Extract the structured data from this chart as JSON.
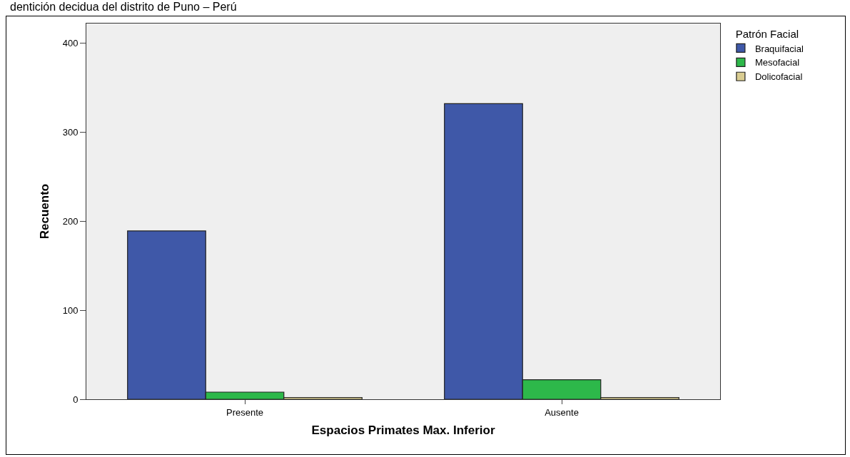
{
  "chart_data": {
    "type": "bar",
    "title": "dentición decidua del distrito de Puno – Perú",
    "xlabel": "Espacios Primates Max. Inferior",
    "ylabel": "Recuento",
    "legend_title": "Patrón Facial",
    "categories": [
      "Presente",
      "Ausente"
    ],
    "series": [
      {
        "name": "Braquifacial",
        "color": "#3f58a8",
        "values": [
          189,
          332
        ]
      },
      {
        "name": "Mesofacial",
        "color": "#2db84a",
        "values": [
          8,
          22
        ]
      },
      {
        "name": "Dolicofacial",
        "color": "#d9cc91",
        "values": [
          2,
          2
        ]
      }
    ],
    "ylim": [
      0,
      422
    ],
    "yticks": [
      0,
      100,
      200,
      300,
      400
    ],
    "grid": false,
    "legend": "top right"
  }
}
